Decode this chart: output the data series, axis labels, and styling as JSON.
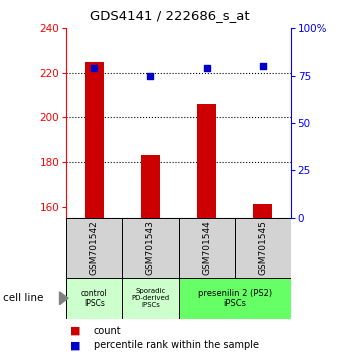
{
  "title": "GDS4141 / 222686_s_at",
  "samples": [
    "GSM701542",
    "GSM701543",
    "GSM701544",
    "GSM701545"
  ],
  "counts": [
    225,
    183,
    206,
    161
  ],
  "percentiles": [
    79,
    75,
    79,
    80
  ],
  "ylim_left": [
    155,
    240
  ],
  "ylim_right": [
    0,
    100
  ],
  "yticks_left": [
    160,
    180,
    200,
    220,
    240
  ],
  "yticks_right": [
    0,
    25,
    50,
    75,
    100
  ],
  "yticklabels_right": [
    "0",
    "25",
    "50",
    "75",
    "100%"
  ],
  "bar_color": "#cc0000",
  "dot_color": "#0000cc",
  "bar_width": 0.35,
  "group1_color": "#ccffcc",
  "group2_color": "#66ff66",
  "cell_line_label": "cell line",
  "legend_count_label": "count",
  "legend_pct_label": "percentile rank within the sample",
  "sample_box_color": "#d3d3d3"
}
